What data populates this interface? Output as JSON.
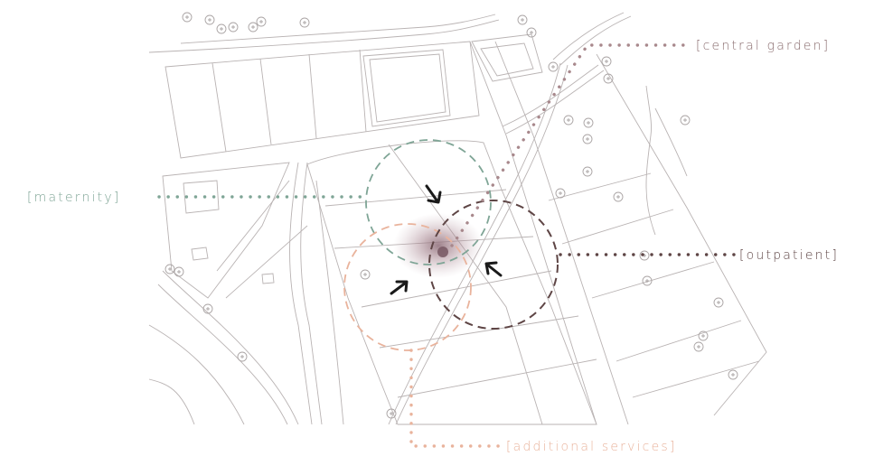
{
  "labels": {
    "central_garden": "[central garden]",
    "maternity": "[maternity]",
    "outpatient": "[outpatient]",
    "additional_services": "[additional services]"
  },
  "colors": {
    "map_line": "#b9b3b3",
    "tree": "#aaa4a4",
    "central_garden": "#a8888c",
    "central_garden_text": "#8a6d6f",
    "maternity": "#7fa596",
    "outpatient": "#5e4545",
    "additional_services": "#e9b39c",
    "focus": "#8c6b76",
    "arrow": "#1a1a1a"
  },
  "icons": {
    "tree": "tree-circle-icon",
    "arrow": "arrow-icon"
  }
}
